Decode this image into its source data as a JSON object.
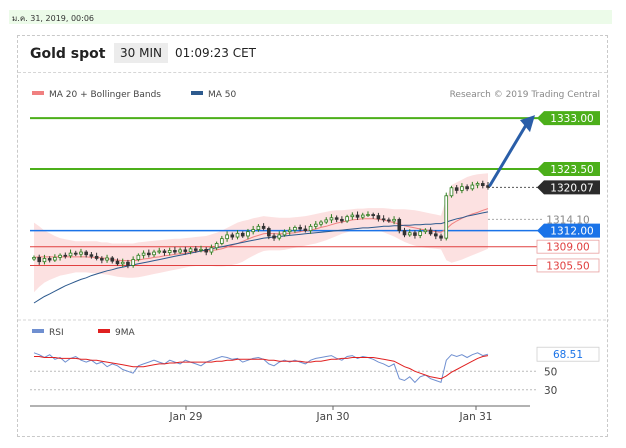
{
  "date_stamp": "ม.ค. 31, 2019, 00:06",
  "header": {
    "title": "Gold spot",
    "interval": "30 MIN",
    "time": "01:09:23 CET"
  },
  "legend": {
    "ma20_label": "MA 20 + Bollinger Bands",
    "ma50_label": "MA 50",
    "credit": "Research © 2019 Trading Central",
    "ma20_color": "#f08080",
    "ma50_color": "#2d5a8e"
  },
  "rsi_legend": {
    "rsi_label": "RSI",
    "ma_label": "9MA",
    "rsi_color": "#6f8fd0",
    "ma_color": "#e02020"
  },
  "chart_data": [
    {
      "type": "candlestick",
      "ylim": [
        1297,
        1336
      ],
      "xticks": [
        "Jan 29",
        "Jan 30",
        "Jan 31"
      ],
      "levels": [
        {
          "label": "1333.00",
          "value": 1333.0,
          "kind": "resistance",
          "color": "#4caf1a"
        },
        {
          "label": "1323.50",
          "value": 1323.5,
          "kind": "resistance",
          "color": "#4caf1a"
        },
        {
          "label": "1320.07",
          "value": 1320.07,
          "kind": "last-price",
          "color": "#333333"
        },
        {
          "label": "1314.10",
          "value": 1314.1,
          "kind": "price",
          "color": "#888888"
        },
        {
          "label": "1312.00",
          "value": 1312.0,
          "kind": "pivot",
          "color": "#1a73e8"
        },
        {
          "label": "1309.00",
          "value": 1309.0,
          "kind": "support",
          "color": "#e04040"
        },
        {
          "label": "1305.50",
          "value": 1305.5,
          "kind": "support",
          "color": "#e04040"
        }
      ],
      "closes": [
        1307.0,
        1306.2,
        1306.8,
        1306.5,
        1307.0,
        1307.4,
        1307.3,
        1307.8,
        1307.6,
        1308.0,
        1307.5,
        1307.2,
        1306.8,
        1306.5,
        1306.9,
        1306.3,
        1305.8,
        1306.1,
        1305.5,
        1306.6,
        1307.4,
        1307.8,
        1307.5,
        1308.0,
        1308.2,
        1307.9,
        1308.3,
        1308.0,
        1308.4,
        1308.1,
        1308.6,
        1308.3,
        1308.5,
        1308.0,
        1308.8,
        1309.6,
        1310.5,
        1311.2,
        1310.8,
        1311.5,
        1311.0,
        1311.8,
        1312.2,
        1312.8,
        1312.4,
        1311.0,
        1310.6,
        1311.2,
        1311.8,
        1312.1,
        1312.6,
        1312.3,
        1312.0,
        1312.8,
        1313.2,
        1313.6,
        1314.0,
        1314.4,
        1314.1,
        1313.8,
        1314.6,
        1314.9,
        1314.5,
        1314.9,
        1315.0,
        1314.8,
        1314.2,
        1314.0,
        1313.8,
        1314.1,
        1312.0,
        1311.2,
        1311.6,
        1311.1,
        1311.8,
        1312.1,
        1311.4,
        1311.0,
        1310.6,
        1318.5,
        1320.0,
        1319.5,
        1320.2,
        1319.8,
        1320.5,
        1320.8,
        1320.4,
        1320.07
      ],
      "bb_upper": [
        1313.5,
        1312.8,
        1312.0,
        1311.5,
        1311.0,
        1310.6,
        1310.4,
        1310.2,
        1310.0,
        1310.0,
        1310.0,
        1310.0,
        1310.0,
        1309.8,
        1309.8,
        1309.6,
        1309.6,
        1309.6,
        1309.6,
        1309.6,
        1309.8,
        1309.9,
        1310.0,
        1310.1,
        1310.2,
        1310.3,
        1310.4,
        1310.5,
        1310.5,
        1310.6,
        1310.7,
        1310.8,
        1310.9,
        1311.0,
        1311.3,
        1311.6,
        1312.0,
        1312.5,
        1313.0,
        1313.5,
        1313.8,
        1314.0,
        1314.3,
        1314.5,
        1314.7,
        1314.6,
        1314.5,
        1314.4,
        1314.4,
        1314.4,
        1314.5,
        1314.6,
        1314.7,
        1314.9,
        1315.1,
        1315.3,
        1315.5,
        1315.7,
        1315.8,
        1315.8,
        1315.9,
        1316.0,
        1316.1,
        1316.1,
        1316.2,
        1316.2,
        1316.2,
        1316.2,
        1316.1,
        1316.0,
        1316.0,
        1316.0,
        1315.9,
        1315.8,
        1315.6,
        1315.4,
        1315.2,
        1315.0,
        1314.8,
        1318.0,
        1320.5,
        1321.0,
        1321.5,
        1322.0,
        1322.3,
        1322.5,
        1322.6,
        1322.7
      ],
      "bb_lower": [
        1300.5,
        1301.5,
        1302.3,
        1302.8,
        1303.2,
        1303.6,
        1303.8,
        1304.0,
        1304.2,
        1304.2,
        1304.2,
        1304.1,
        1304.0,
        1303.9,
        1303.8,
        1303.6,
        1303.4,
        1303.3,
        1303.2,
        1303.2,
        1303.3,
        1303.5,
        1303.7,
        1303.9,
        1304.1,
        1304.3,
        1304.5,
        1304.7,
        1304.9,
        1305.1,
        1305.3,
        1305.4,
        1305.5,
        1305.5,
        1305.4,
        1305.3,
        1305.3,
        1305.4,
        1305.6,
        1305.8,
        1306.2,
        1306.8,
        1307.3,
        1307.8,
        1308.2,
        1308.3,
        1308.3,
        1308.3,
        1308.4,
        1308.6,
        1308.8,
        1309.0,
        1309.2,
        1309.4,
        1309.6,
        1309.9,
        1310.2,
        1310.6,
        1311.0,
        1311.4,
        1311.7,
        1312.0,
        1312.2,
        1312.3,
        1312.3,
        1312.2,
        1312.0,
        1311.7,
        1311.3,
        1310.9,
        1310.4,
        1309.9,
        1309.5,
        1309.2,
        1309.0,
        1308.8,
        1308.7,
        1308.6,
        1308.5,
        1306.5,
        1306.0,
        1306.3,
        1306.6,
        1307.0,
        1307.4,
        1307.8,
        1308.2,
        1308.6
      ],
      "ma20": [
        1307.0,
        1307.1,
        1307.1,
        1307.1,
        1307.1,
        1307.1,
        1307.1,
        1307.1,
        1307.1,
        1307.1,
        1307.1,
        1307.0,
        1307.0,
        1306.9,
        1306.8,
        1306.6,
        1306.5,
        1306.4,
        1306.4,
        1306.4,
        1306.5,
        1306.7,
        1306.8,
        1307.0,
        1307.1,
        1307.3,
        1307.4,
        1307.6,
        1307.7,
        1307.8,
        1308.0,
        1308.1,
        1308.2,
        1308.2,
        1308.3,
        1308.4,
        1308.6,
        1308.9,
        1309.3,
        1309.6,
        1310.0,
        1310.4,
        1310.8,
        1311.1,
        1311.4,
        1311.5,
        1311.4,
        1311.4,
        1311.4,
        1311.5,
        1311.6,
        1311.8,
        1312.0,
        1312.1,
        1312.3,
        1312.6,
        1312.8,
        1313.1,
        1313.4,
        1313.6,
        1313.8,
        1314.0,
        1314.1,
        1314.2,
        1314.2,
        1314.2,
        1314.1,
        1314.0,
        1313.7,
        1313.5,
        1313.2,
        1312.9,
        1312.7,
        1312.5,
        1312.3,
        1312.1,
        1312.0,
        1311.8,
        1311.7,
        1312.3,
        1313.2,
        1313.8,
        1314.3,
        1314.7,
        1315.1,
        1315.4,
        1315.8,
        1316.1
      ],
      "ma50": [
        1298.5,
        1299.1,
        1299.7,
        1300.2,
        1300.7,
        1301.2,
        1301.7,
        1302.1,
        1302.5,
        1302.9,
        1303.2,
        1303.6,
        1303.9,
        1304.2,
        1304.5,
        1304.7,
        1305.0,
        1305.2,
        1305.4,
        1305.6,
        1305.8,
        1306.0,
        1306.2,
        1306.4,
        1306.6,
        1306.8,
        1307.0,
        1307.2,
        1307.4,
        1307.6,
        1307.8,
        1308.0,
        1308.2,
        1308.4,
        1308.6,
        1308.8,
        1309.0,
        1309.2,
        1309.4,
        1309.6,
        1309.8,
        1310.0,
        1310.2,
        1310.4,
        1310.6,
        1310.7,
        1310.8,
        1310.9,
        1311.0,
        1311.1,
        1311.2,
        1311.3,
        1311.4,
        1311.5,
        1311.6,
        1311.7,
        1311.8,
        1311.9,
        1312.0,
        1312.1,
        1312.2,
        1312.3,
        1312.4,
        1312.5,
        1312.5,
        1312.6,
        1312.7,
        1312.8,
        1312.8,
        1312.9,
        1312.9,
        1313.0,
        1313.0,
        1313.1,
        1313.1,
        1313.2,
        1313.2,
        1313.3,
        1313.3,
        1313.6,
        1313.9,
        1314.2,
        1314.4,
        1314.7,
        1314.9,
        1315.1,
        1315.3,
        1315.5
      ]
    },
    {
      "type": "line",
      "title": "RSI",
      "ylim": [
        20,
        85
      ],
      "levels": [
        {
          "label": "68.51",
          "value": 68.51,
          "kind": "last-value",
          "color": "#1a73e8"
        },
        {
          "label": "50",
          "value": 50
        },
        {
          "label": "30",
          "value": 30
        }
      ],
      "rsi": [
        70,
        68,
        65,
        68,
        63,
        65,
        60,
        64,
        66,
        62,
        60,
        62,
        58,
        60,
        55,
        58,
        56,
        52,
        50,
        48,
        56,
        58,
        60,
        62,
        60,
        58,
        62,
        60,
        58,
        62,
        60,
        58,
        56,
        60,
        62,
        64,
        66,
        65,
        63,
        64,
        60,
        62,
        64,
        65,
        63,
        58,
        56,
        60,
        62,
        60,
        62,
        60,
        58,
        62,
        64,
        65,
        66,
        67,
        64,
        62,
        66,
        67,
        64,
        66,
        65,
        63,
        60,
        58,
        55,
        58,
        42,
        40,
        44,
        38,
        44,
        46,
        42,
        40,
        38,
        62,
        68,
        66,
        68,
        65,
        68,
        70,
        67,
        68.51
      ],
      "ma9": [
        66,
        66,
        65,
        65,
        65,
        64,
        64,
        64,
        64,
        63,
        63,
        62,
        62,
        61,
        60,
        59,
        58,
        57,
        56,
        55,
        55,
        55,
        56,
        57,
        58,
        58,
        59,
        59,
        60,
        60,
        60,
        60,
        60,
        60,
        60,
        61,
        61,
        62,
        62,
        63,
        63,
        63,
        63,
        63,
        63,
        62,
        62,
        61,
        61,
        61,
        61,
        61,
        60,
        60,
        61,
        61,
        62,
        63,
        63,
        64,
        64,
        65,
        65,
        65,
        65,
        65,
        64,
        63,
        62,
        61,
        58,
        55,
        53,
        50,
        48,
        46,
        44,
        43,
        42,
        45,
        49,
        52,
        55,
        58,
        61,
        64,
        66,
        67
      ]
    }
  ]
}
